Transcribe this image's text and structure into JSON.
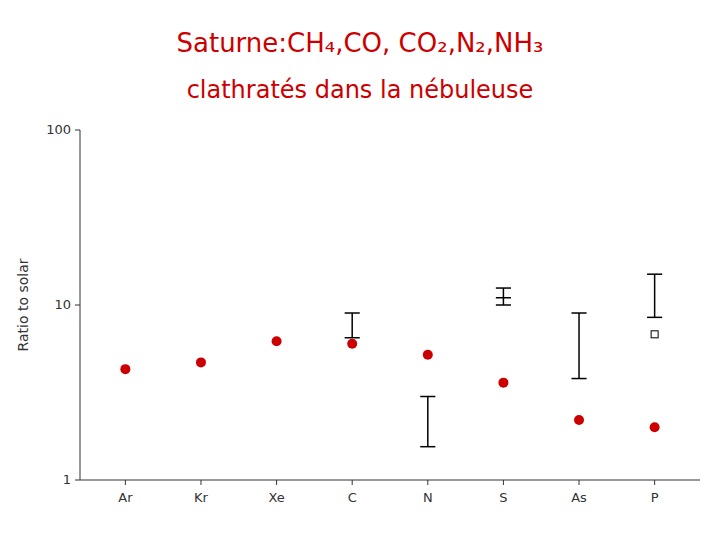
{
  "chart_data": {
    "type": "scatter",
    "title": "Saturne:CH₄,CO, CO₂,N₂,NH₃",
    "subtitle": "clathratés dans la nébuleuse",
    "y_label": "Ratio to solar",
    "categories": [
      "Ar",
      "Kr",
      "Xe",
      "C",
      "N",
      "S",
      "As",
      "P"
    ],
    "values": [
      4.3,
      4.7,
      6.2,
      6.0,
      5.2,
      3.6,
      2.2,
      2.0
    ],
    "color": "#cc0000",
    "marker": "circle",
    "error_low": [
      null,
      null,
      null,
      6.5,
      1.55,
      10.0,
      3.8,
      8.5
    ],
    "error_high": [
      null,
      null,
      null,
      9.0,
      3.0,
      12.5,
      9.0,
      15.0
    ],
    "error_mid": [
      null,
      null,
      null,
      null,
      null,
      11.0,
      null,
      null
    ],
    "open_square": [
      null,
      null,
      null,
      null,
      null,
      null,
      null,
      6.8
    ],
    "log": "y",
    "ylim": [
      1,
      100
    ],
    "yticks": [
      1,
      10,
      100
    ],
    "grid": false
  }
}
